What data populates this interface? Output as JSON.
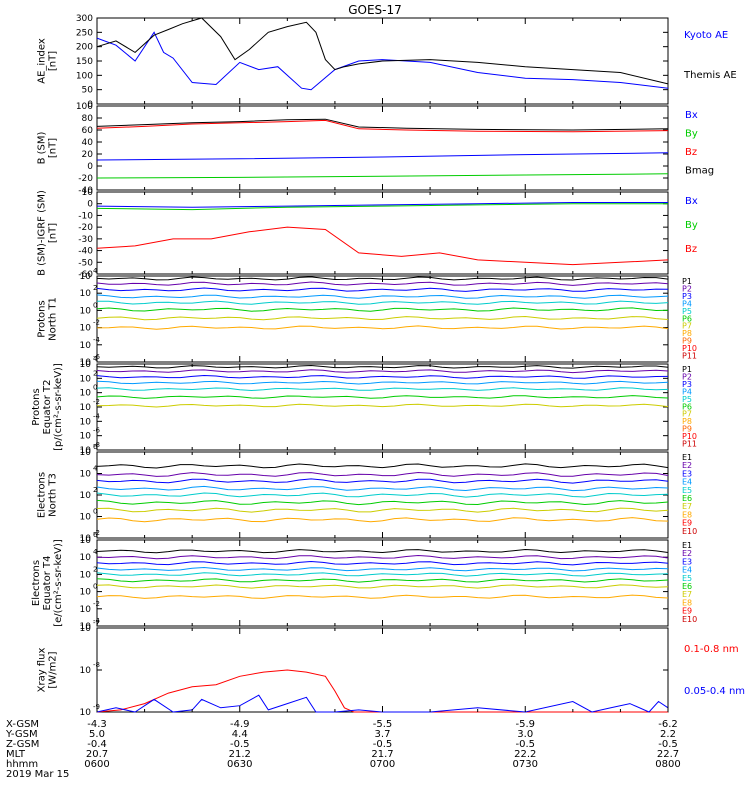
{
  "title": "GOES-17",
  "chart_data": [
    {
      "type": "line",
      "id": "ae",
      "ylabel": [
        "AE_index",
        "[nT]"
      ],
      "ylim": [
        0,
        300
      ],
      "yticks": [
        0,
        50,
        100,
        150,
        200,
        250,
        300
      ],
      "yticklabels": [
        "0",
        "50",
        "100",
        "150",
        "200",
        "250",
        "300"
      ],
      "series": [
        {
          "name": "Kyoto AE",
          "color": "#0000ff",
          "x": [
            0,
            4,
            8,
            12,
            14,
            16,
            20,
            25,
            30,
            34,
            38,
            43,
            45,
            50,
            55,
            60,
            70,
            80,
            90,
            100,
            110,
            120
          ],
          "y": [
            230,
            205,
            150,
            250,
            180,
            160,
            75,
            68,
            145,
            120,
            130,
            55,
            50,
            120,
            150,
            155,
            145,
            110,
            90,
            85,
            75,
            55
          ]
        },
        {
          "name": "Themis AE",
          "color": "#000000",
          "x": [
            0,
            4,
            8,
            12,
            15,
            18,
            22,
            26,
            29,
            32,
            36,
            40,
            44,
            46,
            48,
            50,
            52,
            55,
            60,
            70,
            80,
            90,
            100,
            110,
            120
          ],
          "y": [
            200,
            220,
            180,
            240,
            260,
            280,
            300,
            235,
            155,
            190,
            250,
            270,
            285,
            250,
            155,
            120,
            130,
            140,
            150,
            155,
            145,
            130,
            120,
            110,
            70
          ]
        }
      ]
    },
    {
      "type": "line",
      "id": "bsm",
      "ylabel": [
        "B (SM)",
        "[nT]"
      ],
      "ylim": [
        -40,
        100
      ],
      "yticks": [
        -40,
        -20,
        0,
        20,
        40,
        60,
        80,
        100
      ],
      "yticklabels": [
        "-40",
        "-20",
        "0",
        "20",
        "40",
        "60",
        "80",
        "100"
      ],
      "series": [
        {
          "name": "Bx",
          "color": "#0000ff",
          "x": [
            0,
            30,
            60,
            90,
            120
          ],
          "y": [
            10,
            12,
            15,
            19,
            22
          ]
        },
        {
          "name": "By",
          "color": "#00cc00",
          "x": [
            0,
            30,
            60,
            90,
            120
          ],
          "y": [
            -20,
            -19,
            -17,
            -15,
            -13
          ]
        },
        {
          "name": "Bz",
          "color": "#ff0000",
          "x": [
            0,
            10,
            20,
            30,
            40,
            48,
            55,
            65,
            80,
            100,
            120
          ],
          "y": [
            63,
            66,
            70,
            72,
            74,
            76,
            62,
            60,
            58,
            57,
            59
          ]
        },
        {
          "name": "Bmag",
          "color": "#000000",
          "x": [
            0,
            10,
            20,
            30,
            40,
            48,
            55,
            65,
            80,
            100,
            120
          ],
          "y": [
            66,
            69,
            72,
            74,
            77,
            78,
            65,
            63,
            61,
            60,
            62
          ]
        }
      ]
    },
    {
      "type": "line",
      "id": "bigrf",
      "ylabel": [
        "B (SM)-IGRF (SM)",
        "[nT]"
      ],
      "ylim": [
        -60,
        10
      ],
      "yticks": [
        -60,
        -50,
        -40,
        -30,
        -20,
        -10,
        0,
        10
      ],
      "yticklabels": [
        "-60",
        "-50",
        "-40",
        "-30",
        "-20",
        "-10",
        "0",
        "10"
      ],
      "series": [
        {
          "name": "Bx",
          "color": "#0000ff",
          "x": [
            0,
            20,
            40,
            60,
            80,
            100,
            120
          ],
          "y": [
            -2,
            -3,
            -2,
            -1,
            0,
            1,
            1
          ]
        },
        {
          "name": "By",
          "color": "#00cc00",
          "x": [
            0,
            20,
            40,
            60,
            80,
            100,
            120
          ],
          "y": [
            -4,
            -5,
            -3,
            -2,
            -1,
            0,
            0
          ]
        },
        {
          "name": "Bz",
          "color": "#ff0000",
          "x": [
            0,
            8,
            16,
            24,
            32,
            40,
            48,
            55,
            64,
            72,
            80,
            90,
            100,
            110,
            120
          ],
          "y": [
            -38,
            -36,
            -30,
            -30,
            -24,
            -20,
            -22,
            -42,
            -45,
            -42,
            -48,
            -50,
            -52,
            -50,
            -48
          ]
        }
      ]
    },
    {
      "type": "line",
      "id": "p_north",
      "ylabel": [
        "Protons",
        "North T1"
      ],
      "logscale": true,
      "ylim": [
        -6,
        4
      ],
      "yticks": [
        -6,
        -4,
        -2,
        0,
        2,
        4
      ],
      "yticklabels": [
        "10",
        "10",
        "10",
        "10",
        "10",
        "10"
      ],
      "yticksup": [
        "-6",
        "-4",
        "-2",
        "0",
        "2",
        "4"
      ],
      "series": [
        {
          "name": "P1",
          "color": "#000000",
          "lvl": 3.7
        },
        {
          "name": "P2",
          "color": "#6600aa",
          "lvl": 3.1
        },
        {
          "name": "P3",
          "color": "#0000ff",
          "lvl": 2.4
        },
        {
          "name": "P4",
          "color": "#0099ff",
          "lvl": 1.6
        },
        {
          "name": "P5",
          "color": "#00cccc",
          "lvl": 0.9
        },
        {
          "name": "P6",
          "color": "#00cc00",
          "lvl": 0.1
        },
        {
          "name": "P7",
          "color": "#cccc00",
          "lvl": -0.9
        },
        {
          "name": "P8",
          "color": "#ffaa00",
          "lvl": -2.0
        }
      ],
      "legend": [
        "P1",
        "P2",
        "P3",
        "P4",
        "P5",
        "P6",
        "P7",
        "P8",
        "P9",
        "P10",
        "P11"
      ],
      "legend_colors": [
        "#000000",
        "#6600aa",
        "#0000ff",
        "#0099ff",
        "#00cccc",
        "#00cc00",
        "#cccc00",
        "#ffaa00",
        "#ff6600",
        "#ff0000",
        "#cc0000"
      ]
    },
    {
      "type": "line",
      "id": "p_equator",
      "ylabel": [
        "Protons",
        "Equator T2",
        "[p/(cm²-s-sr-keV)]"
      ],
      "logscale": true,
      "ylim": [
        -8,
        4
      ],
      "yticks": [
        -8,
        -6,
        -4,
        -2,
        0,
        2,
        4
      ],
      "yticklabels": [
        "10",
        "10",
        "10",
        "10",
        "10",
        "10",
        "10"
      ],
      "yticksup": [
        "-8",
        "-6",
        "-4",
        "-2",
        "0",
        "2",
        "4"
      ],
      "series": [
        {
          "name": "P1",
          "color": "#000000",
          "lvl": 3.6
        },
        {
          "name": "P2",
          "color": "#6600aa",
          "lvl": 3.0
        },
        {
          "name": "P3",
          "color": "#0000ff",
          "lvl": 2.2
        },
        {
          "name": "P4",
          "color": "#0099ff",
          "lvl": 1.4
        },
        {
          "name": "P5",
          "color": "#00cccc",
          "lvl": 0.5
        },
        {
          "name": "P6",
          "color": "#00cc00",
          "lvl": -0.6
        },
        {
          "name": "P7",
          "color": "#cccc00",
          "lvl": -1.8
        }
      ],
      "legend": [
        "P1",
        "P2",
        "P3",
        "P4",
        "P5",
        "P6",
        "P7",
        "P8",
        "P9",
        "P10",
        "P11"
      ],
      "legend_colors": [
        "#000000",
        "#6600aa",
        "#0000ff",
        "#0099ff",
        "#00cccc",
        "#00cc00",
        "#cccc00",
        "#ffaa00",
        "#ff6600",
        "#ff0000",
        "#cc0000"
      ]
    },
    {
      "type": "line",
      "id": "e_north",
      "ylabel": [
        "Electrons",
        "North T3"
      ],
      "logscale": true,
      "ylim": [
        -2,
        6
      ],
      "yticks": [
        -2,
        0,
        2,
        4,
        6
      ],
      "yticklabels": [
        "10",
        "10",
        "10",
        "10",
        "10"
      ],
      "yticksup": [
        "-2",
        "0",
        "2",
        "4",
        "6"
      ],
      "series": [
        {
          "name": "E1",
          "color": "#000000",
          "lvl": 4.7
        },
        {
          "name": "E2",
          "color": "#6600aa",
          "lvl": 3.9
        },
        {
          "name": "E3",
          "color": "#0000ff",
          "lvl": 3.3
        },
        {
          "name": "E4",
          "color": "#0099ff",
          "lvl": 2.6
        },
        {
          "name": "E5",
          "color": "#00cccc",
          "lvl": 2.0
        },
        {
          "name": "E6",
          "color": "#00cc00",
          "lvl": 1.3
        },
        {
          "name": "E7",
          "color": "#cccc00",
          "lvl": 0.6
        },
        {
          "name": "E8",
          "color": "#ffaa00",
          "lvl": -0.3
        }
      ],
      "legend": [
        "E1",
        "E2",
        "E3",
        "E4",
        "E5",
        "E6",
        "E7",
        "E8",
        "E9",
        "E10"
      ],
      "legend_colors": [
        "#000000",
        "#6600aa",
        "#0000ff",
        "#0099ff",
        "#00cccc",
        "#00cc00",
        "#cccc00",
        "#ffaa00",
        "#ff0000",
        "#cc0000"
      ]
    },
    {
      "type": "line",
      "id": "e_equator",
      "ylabel": [
        "Electrons",
        "Equator T4",
        "[e/(cm²-s-sr-keV)]"
      ],
      "logscale": true,
      "ylim": [
        -4,
        6
      ],
      "yticks": [
        -4,
        -2,
        0,
        2,
        4,
        6
      ],
      "yticklabels": [
        "10",
        "10",
        "10",
        "10",
        "10",
        "10"
      ],
      "yticksup": [
        "-4",
        "-2",
        "0",
        "2",
        "4",
        "6"
      ],
      "series": [
        {
          "name": "E1",
          "color": "#000000",
          "lvl": 4.7
        },
        {
          "name": "E2",
          "color": "#6600aa",
          "lvl": 4.0
        },
        {
          "name": "E3",
          "color": "#0000ff",
          "lvl": 3.3
        },
        {
          "name": "E4",
          "color": "#0099ff",
          "lvl": 2.6
        },
        {
          "name": "E5",
          "color": "#00cccc",
          "lvl": 2.0
        },
        {
          "name": "E6",
          "color": "#00cc00",
          "lvl": 1.3
        },
        {
          "name": "E7",
          "color": "#cccc00",
          "lvl": 0.6
        },
        {
          "name": "E8",
          "color": "#ffaa00",
          "lvl": -0.6
        }
      ],
      "legend": [
        "E1",
        "E2",
        "E3",
        "E4",
        "E5",
        "E6",
        "E7",
        "E8",
        "E9",
        "E10"
      ],
      "legend_colors": [
        "#000000",
        "#6600aa",
        "#0000ff",
        "#0099ff",
        "#00cccc",
        "#00cc00",
        "#cccc00",
        "#ffaa00",
        "#ff0000",
        "#cc0000"
      ]
    },
    {
      "type": "line",
      "id": "xray",
      "ylabel": [
        "Xray flux",
        "[W/m2]"
      ],
      "logscale": true,
      "ylim": [
        -9,
        -7
      ],
      "yticks": [
        -9,
        -8,
        -7
      ],
      "yticklabels": [
        "10",
        "10",
        "10"
      ],
      "yticksup": [
        "-9",
        "-8",
        "-7"
      ],
      "series": [
        {
          "name": "0.1-0.8 nm",
          "color": "#ff0000",
          "x": [
            0,
            5,
            10,
            15,
            20,
            25,
            30,
            35,
            40,
            44,
            48,
            50,
            52,
            54,
            56,
            58,
            60,
            70,
            80,
            90,
            100,
            110,
            120
          ],
          "y": [
            -9.0,
            -8.95,
            -8.8,
            -8.55,
            -8.4,
            -8.35,
            -8.15,
            -8.05,
            -8.0,
            -8.05,
            -8.15,
            -8.5,
            -8.9,
            -9.0,
            -9.0,
            -9.0,
            -9.0,
            -9.0,
            -9.0,
            -9.0,
            -9.0,
            -9.0,
            -9.0
          ]
        },
        {
          "name": "0.05-0.4 nm",
          "color": "#0000ff",
          "x": [
            0,
            4,
            8,
            12,
            16,
            20,
            22,
            26,
            30,
            34,
            36,
            40,
            44,
            46,
            50,
            55,
            60,
            70,
            80,
            90,
            100,
            104,
            108,
            112,
            116,
            118,
            120
          ],
          "y": [
            -9.0,
            -8.9,
            -9.0,
            -8.7,
            -9.0,
            -8.95,
            -8.7,
            -8.9,
            -8.85,
            -8.6,
            -8.95,
            -8.8,
            -8.65,
            -9.0,
            -9.0,
            -8.95,
            -9.0,
            -9.0,
            -8.9,
            -9.0,
            -8.75,
            -9.0,
            -8.9,
            -8.8,
            -9.0,
            -8.75,
            -8.9
          ]
        }
      ]
    }
  ],
  "xaxis": {
    "rows": [
      "X-GSM",
      "Y-GSM",
      "Z-GSM",
      "MLT",
      "hhmm"
    ],
    "date": "2019 Mar 15",
    "ticks": [
      {
        "x": 0,
        "vals": [
          "-4.3",
          "5.0",
          "-0.4",
          "20.7",
          "0600"
        ]
      },
      {
        "x": 30,
        "vals": [
          "-4.9",
          "4.4",
          "-0.5",
          "21.2",
          "0630"
        ]
      },
      {
        "x": 60,
        "vals": [
          "-5.5",
          "3.7",
          "-0.5",
          "21.7",
          "0700"
        ]
      },
      {
        "x": 90,
        "vals": [
          "-5.9",
          "3.0",
          "-0.5",
          "22.2",
          "0730"
        ]
      },
      {
        "x": 120,
        "vals": [
          "-6.2",
          "2.2",
          "-0.5",
          "22.7",
          "0800"
        ]
      }
    ]
  }
}
